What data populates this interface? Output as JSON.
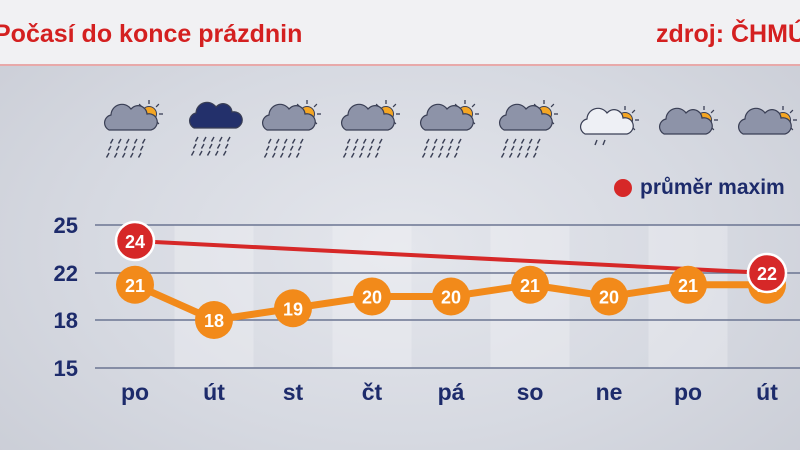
{
  "header": {
    "title": "Počasí do konce prázdnin",
    "source": "zdroj: ČHMÚ"
  },
  "legend": {
    "label": "průměr maxim"
  },
  "icons": [
    "partly-cloudy-rain-icon",
    "rain-cloud-icon",
    "partly-cloudy-rain-icon",
    "partly-cloudy-rain-icon",
    "partly-cloudy-rain-icon",
    "partly-cloudy-rain-icon",
    "partly-cloudy-light-rain-icon",
    "partly-cloudy-icon",
    "partly-cloudy-icon"
  ],
  "colors": {
    "title": "#d42020",
    "average_line": "#d62828",
    "forecast_line": "#f28a1a",
    "axis_text": "#1d2b6b",
    "grid": "#6b7592"
  },
  "chart_data": {
    "type": "line",
    "categories": [
      "po",
      "út",
      "st",
      "čt",
      "pá",
      "so",
      "ne",
      "po",
      "út"
    ],
    "ylim": [
      15,
      25
    ],
    "yticks": [
      15,
      18,
      22,
      25
    ],
    "grid": true,
    "legend_position": "top-right",
    "series": [
      {
        "name": "",
        "color": "#f28a1a",
        "values": [
          21,
          18,
          19,
          20,
          20,
          21,
          20,
          21,
          21
        ]
      },
      {
        "name": "průměr maxim",
        "color": "#d62828",
        "values": [
          24,
          null,
          null,
          null,
          null,
          null,
          null,
          null,
          22
        ]
      }
    ]
  }
}
